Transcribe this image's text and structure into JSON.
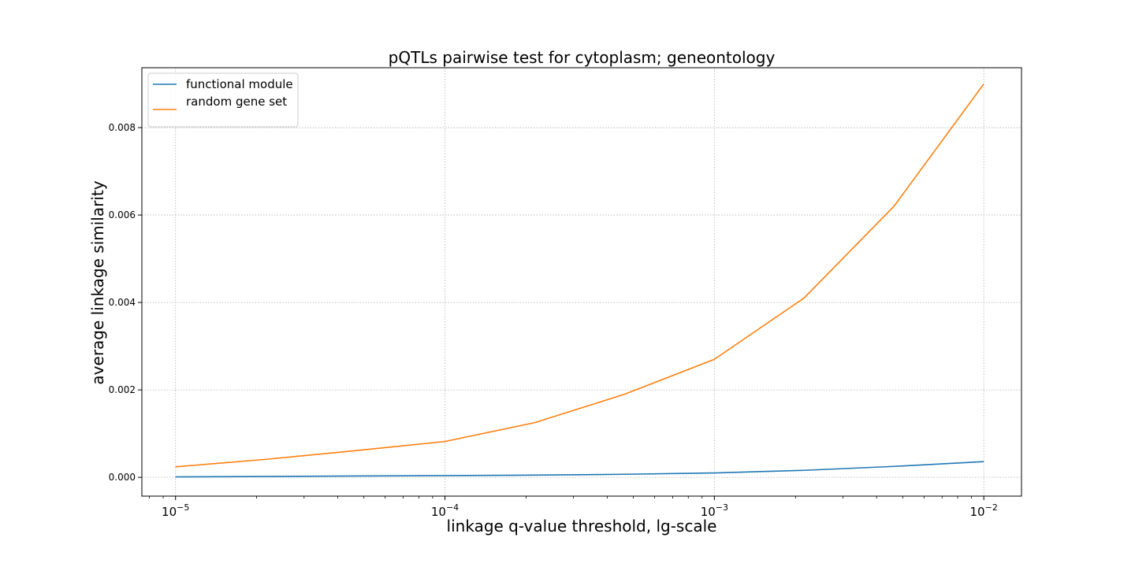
{
  "chart_data": {
    "type": "line",
    "title": "pQTLs pairwise test for cytoplasm; geneontology",
    "xlabel": "linkage q-value threshold, lg-scale",
    "ylabel": "average linkage similarity",
    "x_scale": "log10",
    "xlim": [
      7.5e-06,
      0.0138
    ],
    "ylim": [
      -0.00043,
      0.00937
    ],
    "x_ticks": [
      {
        "value": 1e-05,
        "base": "10",
        "exp": "−5"
      },
      {
        "value": 0.0001,
        "base": "10",
        "exp": "−4"
      },
      {
        "value": 0.001,
        "base": "10",
        "exp": "−3"
      },
      {
        "value": 0.01,
        "base": "10",
        "exp": "−2"
      }
    ],
    "y_ticks": [
      {
        "value": 0.0,
        "label": "0.000"
      },
      {
        "value": 0.002,
        "label": "0.002"
      },
      {
        "value": 0.004,
        "label": "0.004"
      },
      {
        "value": 0.006,
        "label": "0.006"
      },
      {
        "value": 0.008,
        "label": "0.008"
      }
    ],
    "grid": true,
    "legend_position": "upper-left",
    "x": [
      1e-05,
      2.15e-05,
      4.64e-05,
      0.0001,
      0.000215,
      0.000464,
      0.001,
      0.00215,
      0.00464,
      0.01
    ],
    "series": [
      {
        "name": "functional module",
        "color": "#1f77b4",
        "values": [
          1e-05,
          2e-05,
          3e-05,
          4e-05,
          5e-05,
          7e-05,
          0.0001,
          0.00016,
          0.00025,
          0.00036
        ]
      },
      {
        "name": "random gene set",
        "color": "#ff7f0e",
        "values": [
          0.00024,
          0.00041,
          0.00061,
          0.00082,
          0.00125,
          0.0019,
          0.0027,
          0.0041,
          0.0062,
          0.009
        ]
      }
    ]
  }
}
